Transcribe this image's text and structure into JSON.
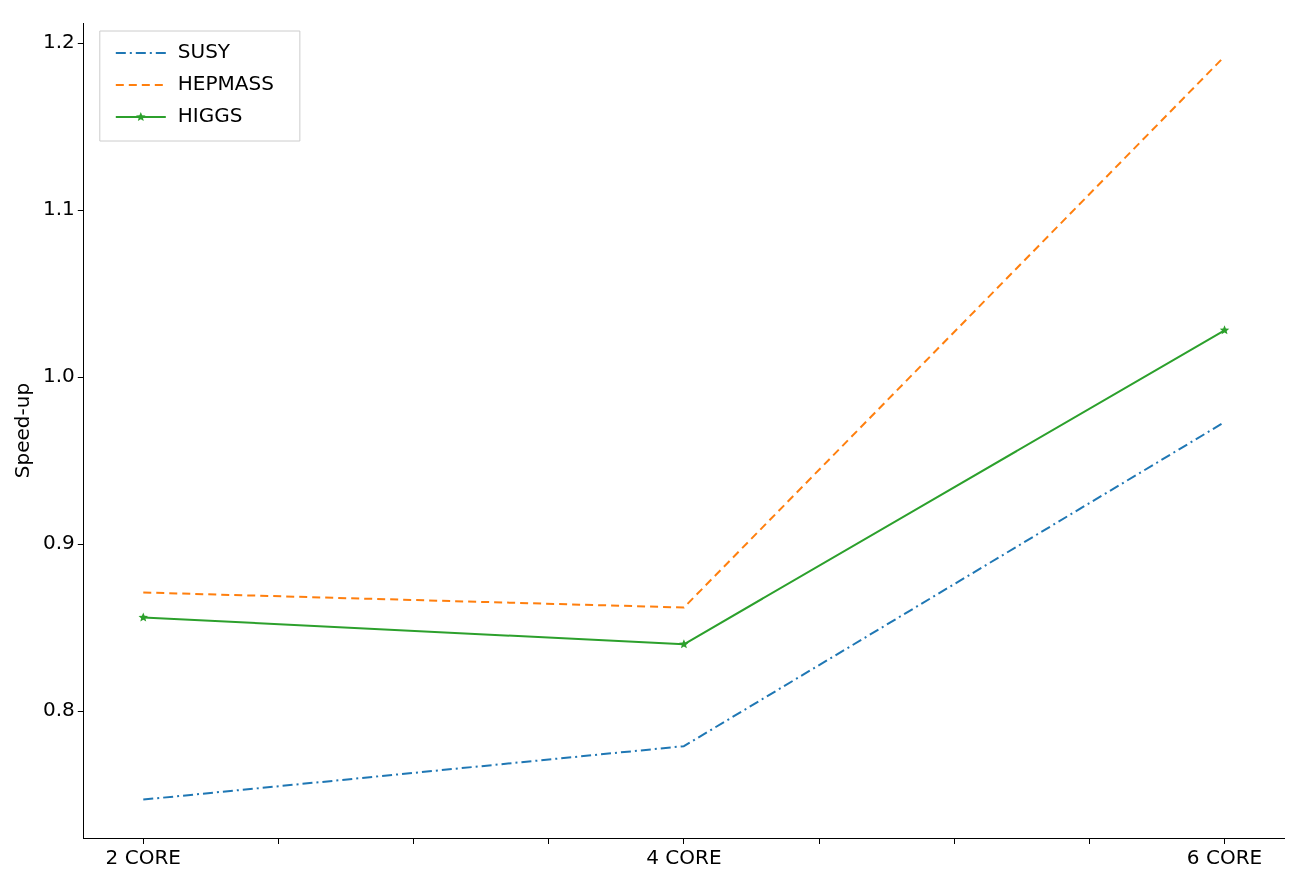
{
  "chart_data": {
    "type": "line",
    "ylabel": "Speed-up",
    "x": [
      2,
      4,
      6
    ],
    "xlim": [
      1.78,
      6.22
    ],
    "xticks": [
      {
        "value": 2,
        "label": "2 CORE"
      },
      {
        "value": 2.5,
        "label": null
      },
      {
        "value": 3,
        "label": null
      },
      {
        "value": 3.5,
        "label": null
      },
      {
        "value": 4,
        "label": "4 CORE"
      },
      {
        "value": 4.5,
        "label": null
      },
      {
        "value": 5,
        "label": null
      },
      {
        "value": 5.5,
        "label": null
      },
      {
        "value": 6,
        "label": "6 CORE"
      }
    ],
    "ylim": [
      0.724,
      1.212
    ],
    "yticks": [
      0.8,
      0.9,
      {
        "value": 1,
        "label": "1.0"
      },
      1.1,
      1.2
    ],
    "grid": false,
    "legend": "top left",
    "series": [
      {
        "name": "SUSY",
        "color": "#1f77b4",
        "values": [
          0.747,
          0.779,
          0.973
        ],
        "line_style": "dashdot",
        "marker": "none"
      },
      {
        "name": "HEPMASS",
        "color": "#ff7f0e",
        "values": [
          0.871,
          0.862,
          1.192
        ],
        "line_style": "dashed",
        "marker": "none"
      },
      {
        "name": "HIGGS",
        "color": "#2ca02c",
        "values": [
          0.856,
          0.84,
          1.028
        ],
        "line_style": "solid",
        "marker": "star"
      }
    ]
  }
}
